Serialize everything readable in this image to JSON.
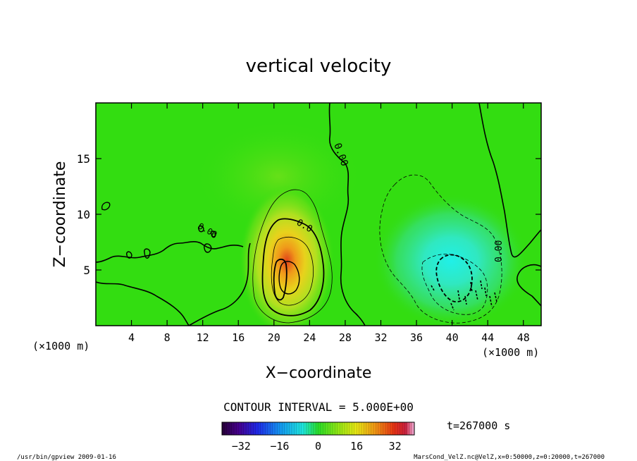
{
  "chart_data": {
    "type": "heatmap",
    "title": "vertical velocity",
    "xlabel": "X−coordinate",
    "ylabel": "Z−coordinate",
    "x_unit_left": "(×1000 m)",
    "x_unit_right": "(×1000 m)",
    "xlim": [
      0,
      50
    ],
    "ylim": [
      0,
      20
    ],
    "x_ticks": [
      4,
      8,
      12,
      16,
      20,
      24,
      28,
      32,
      36,
      40,
      44,
      48
    ],
    "y_ticks": [
      5,
      10,
      15
    ],
    "contour_interval": "CONTOUR INTERVAL = 5.000E+00",
    "contour_labels": [
      "0.00",
      "0.00",
      "0.00",
      "0.0"
    ],
    "colorbar": {
      "min": -40,
      "max": 40,
      "ticks": [
        -32,
        -16,
        0,
        16,
        32
      ],
      "tick_labels": [
        "−32",
        "−16",
        "0",
        "16",
        "32"
      ]
    },
    "features": [
      {
        "name": "updraft",
        "x": 20.5,
        "z": 5,
        "peak": 30
      },
      {
        "name": "downdraft",
        "x": 40,
        "z": 5,
        "peak": -15
      }
    ],
    "time_label": "t=267000 s",
    "footer_left": "/usr/bin/gpview   2009-01-16",
    "footer_right": "MarsCond_VelZ.nc@VelZ,x=0:50000,z=0:20000,t=267000"
  },
  "colors": {
    "background_field": "#33dd11",
    "contour": "#000000"
  }
}
